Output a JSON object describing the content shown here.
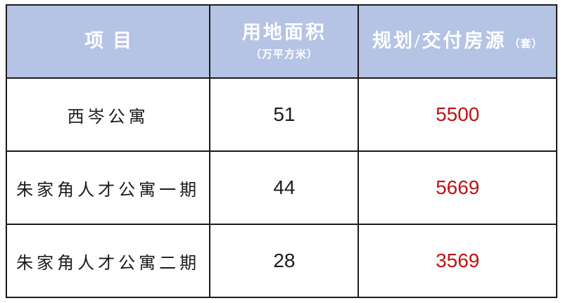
{
  "colors": {
    "header_bg": "#b5c3e4",
    "header_text": "#ffffff",
    "body_text": "#1c1c1c",
    "units_text": "#bf1212",
    "border": "#1b1b1b",
    "page_bg": "#ffffff"
  },
  "table": {
    "header": {
      "project": "项目",
      "area_main": "用地面积",
      "area_sub": "（万平方米）",
      "units_main": "规划/交付房源",
      "units_sub": "（套）"
    },
    "rows": [
      {
        "project": "西岑公寓",
        "area": "51",
        "units": "5500"
      },
      {
        "project": "朱家角人才公寓一期",
        "area": "44",
        "units": "5669"
      },
      {
        "project": "朱家角人才公寓二期",
        "area": "28",
        "units": "3569"
      }
    ]
  },
  "chart_data": {
    "type": "table",
    "columns": [
      "项目",
      "用地面积（万平方米）",
      "规划/交付房源（套）"
    ],
    "rows": [
      [
        "西岑公寓",
        51,
        5500
      ],
      [
        "朱家角人才公寓一期",
        44,
        5669
      ],
      [
        "朱家角人才公寓二期",
        28,
        3569
      ]
    ],
    "notes": "header row light periwinkle background with white text; unit counts column rendered in dark red"
  }
}
